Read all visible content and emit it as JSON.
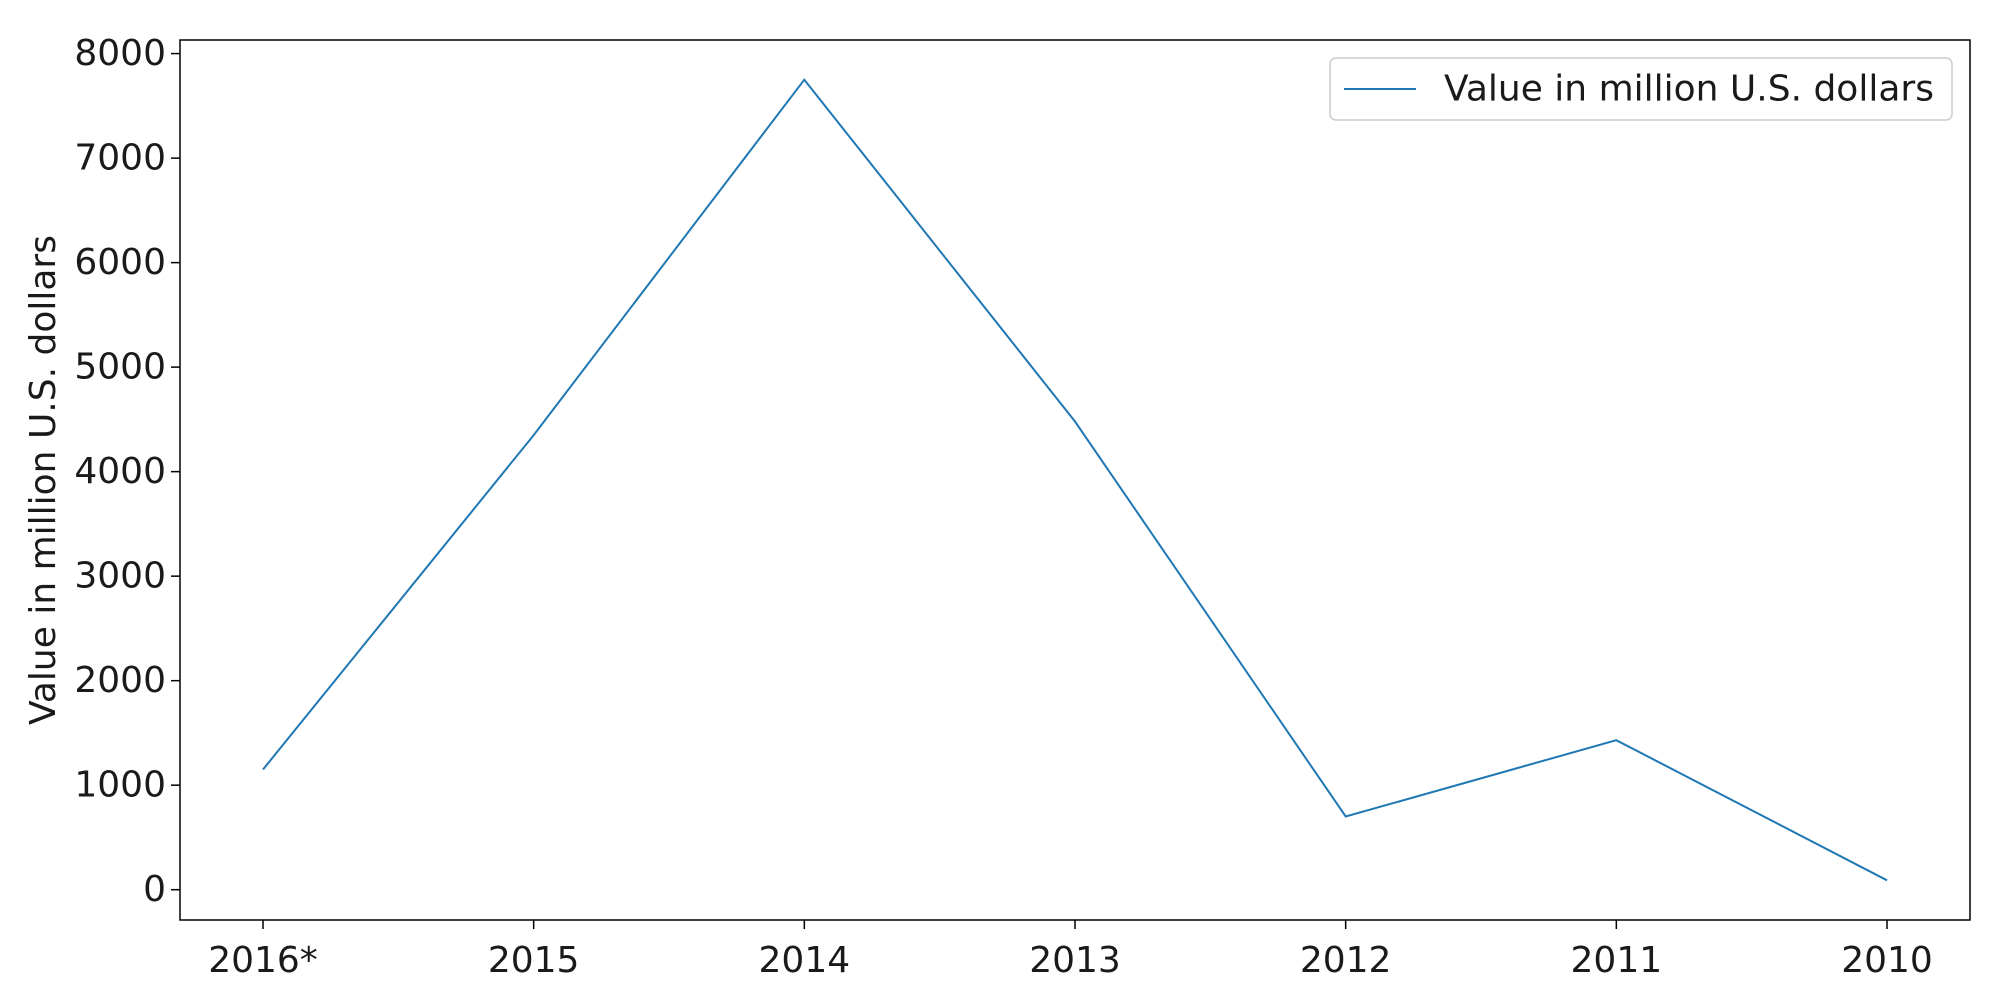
{
  "chart_data": {
    "type": "line",
    "categories": [
      "2016*",
      "2015",
      "2014",
      "2013",
      "2012",
      "2011",
      "2010"
    ],
    "series": [
      {
        "name": "Value in million U.S. dollars",
        "values": [
          1150,
          4350,
          7750,
          4480,
          700,
          1430,
          90
        ]
      }
    ],
    "title": "",
    "xlabel": "",
    "ylabel": "Value in million U.S. dollars",
    "ylim": [
      -290,
      8130
    ],
    "yticks": [
      0,
      1000,
      2000,
      3000,
      4000,
      5000,
      6000,
      7000,
      8000
    ],
    "grid": false,
    "legend": "top-right",
    "colors": {
      "line": "#1f77b4",
      "axis": "#000000",
      "legend_border": "#cccccc"
    }
  }
}
